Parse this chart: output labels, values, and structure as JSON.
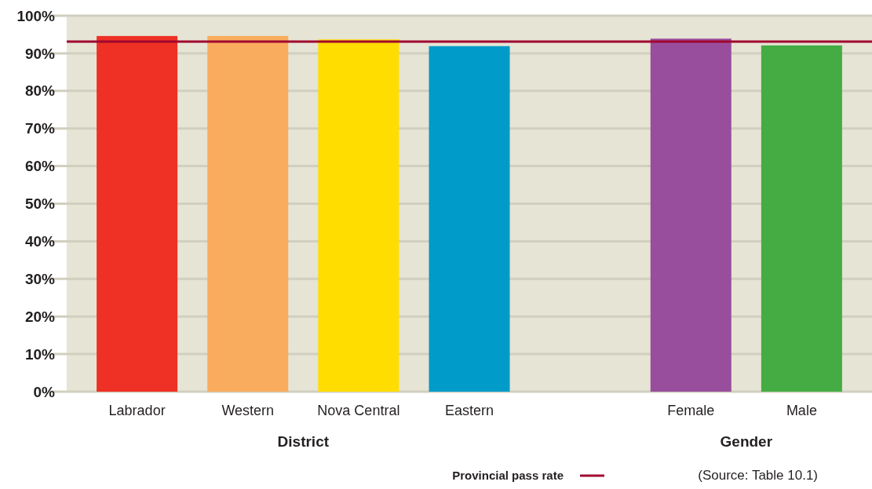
{
  "chart_data": {
    "type": "bar",
    "categories": [
      "Labrador",
      "Western",
      "Nova Central",
      "Eastern",
      null,
      "Female",
      "Male"
    ],
    "values": [
      94.6,
      94.6,
      93.7,
      91.9,
      null,
      93.9,
      92.1
    ],
    "colors": [
      "#ee3124",
      "#f9ac5d",
      "#ffdd00",
      "#009bc9",
      null,
      "#984e9c",
      "#44ac43"
    ],
    "ylim": [
      0,
      100
    ],
    "yticks": [
      {
        "value": 0,
        "label": "0%"
      },
      {
        "value": 10,
        "label": "10%"
      },
      {
        "value": 20,
        "label": "20%"
      },
      {
        "value": 30,
        "label": "30%"
      },
      {
        "value": 40,
        "label": "40%"
      },
      {
        "value": 50,
        "label": "50%"
      },
      {
        "value": 60,
        "label": "60%"
      },
      {
        "value": 70,
        "label": "70%"
      },
      {
        "value": 80,
        "label": "80%"
      },
      {
        "value": 90,
        "label": "90%"
      },
      {
        "value": 100,
        "label": "100%"
      }
    ],
    "grid": "y",
    "ref_lines": [
      {
        "axis": "y",
        "value": 93.1,
        "label": "Provincial pass rate",
        "color": "#a0062f"
      }
    ],
    "legend": "bottom",
    "annotations": [
      "District",
      "Gender",
      "(Source: Table 10.1)"
    ]
  }
}
